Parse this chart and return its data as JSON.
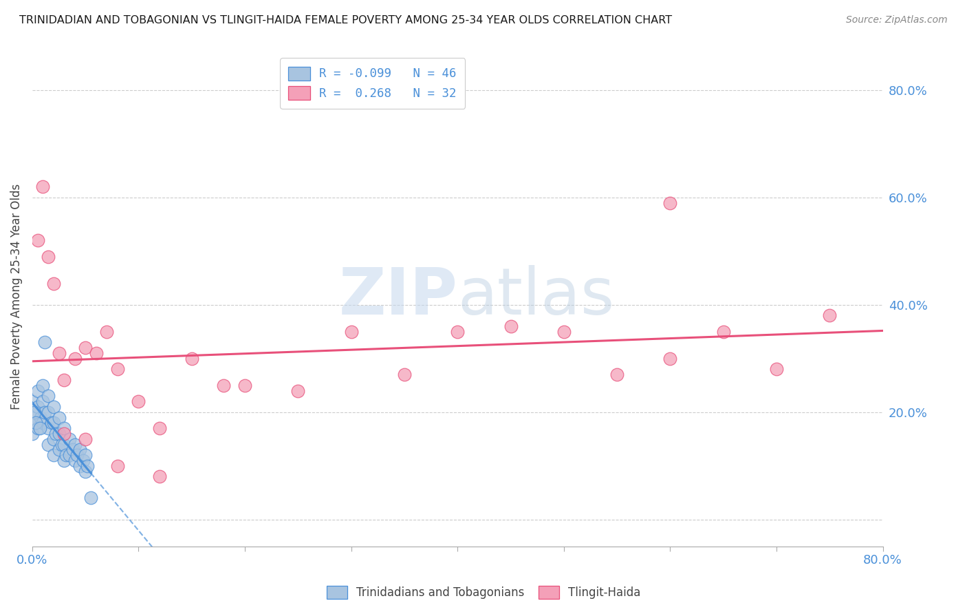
{
  "title": "TRINIDADIAN AND TOBAGONIAN VS TLINGIT-HAIDA FEMALE POVERTY AMONG 25-34 YEAR OLDS CORRELATION CHART",
  "source": "Source: ZipAtlas.com",
  "ylabel": "Female Poverty Among 25-34 Year Olds",
  "xlim": [
    0,
    0.8
  ],
  "ylim": [
    -0.05,
    0.88
  ],
  "yticks": [
    0.0,
    0.2,
    0.4,
    0.6,
    0.8
  ],
  "ytick_labels": [
    "",
    "20.0%",
    "40.0%",
    "60.0%",
    "80.0%"
  ],
  "xticks": [
    0.0,
    0.1,
    0.2,
    0.3,
    0.4,
    0.5,
    0.6,
    0.7,
    0.8
  ],
  "watermark_zip": "ZIP",
  "watermark_atlas": "atlas",
  "legend_label_blue": "R = -0.099   N = 46",
  "legend_label_pink": "R =  0.268   N = 32",
  "bottom_legend_blue": "Trinidadians and Tobagonians",
  "bottom_legend_pink": "Tlingit-Haida",
  "blue_scatter_x": [
    0.0,
    0.0,
    0.0,
    0.005,
    0.005,
    0.005,
    0.008,
    0.01,
    0.01,
    0.01,
    0.012,
    0.015,
    0.015,
    0.015,
    0.015,
    0.018,
    0.02,
    0.02,
    0.02,
    0.02,
    0.022,
    0.025,
    0.025,
    0.025,
    0.028,
    0.03,
    0.03,
    0.03,
    0.032,
    0.035,
    0.035,
    0.038,
    0.04,
    0.04,
    0.042,
    0.045,
    0.045,
    0.048,
    0.05,
    0.05,
    0.052,
    0.055,
    0.002,
    0.003,
    0.007,
    0.012
  ],
  "blue_scatter_y": [
    0.22,
    0.19,
    0.16,
    0.24,
    0.21,
    0.17,
    0.19,
    0.25,
    0.22,
    0.18,
    0.2,
    0.23,
    0.2,
    0.17,
    0.14,
    0.18,
    0.21,
    0.18,
    0.15,
    0.12,
    0.16,
    0.19,
    0.16,
    0.13,
    0.14,
    0.17,
    0.14,
    0.11,
    0.12,
    0.15,
    0.12,
    0.13,
    0.14,
    0.11,
    0.12,
    0.13,
    0.1,
    0.11,
    0.12,
    0.09,
    0.1,
    0.04,
    0.2,
    0.18,
    0.17,
    0.33
  ],
  "pink_scatter_x": [
    0.005,
    0.01,
    0.015,
    0.02,
    0.025,
    0.03,
    0.04,
    0.05,
    0.06,
    0.07,
    0.08,
    0.1,
    0.12,
    0.15,
    0.18,
    0.2,
    0.25,
    0.3,
    0.35,
    0.4,
    0.45,
    0.5,
    0.55,
    0.6,
    0.65,
    0.7,
    0.75,
    0.6,
    0.03,
    0.05,
    0.08,
    0.12
  ],
  "pink_scatter_y": [
    0.52,
    0.62,
    0.49,
    0.44,
    0.31,
    0.26,
    0.3,
    0.32,
    0.31,
    0.35,
    0.28,
    0.22,
    0.17,
    0.3,
    0.25,
    0.25,
    0.24,
    0.35,
    0.27,
    0.35,
    0.36,
    0.35,
    0.27,
    0.59,
    0.35,
    0.28,
    0.38,
    0.3,
    0.16,
    0.15,
    0.1,
    0.08
  ],
  "blue_line_color": "#4a90d9",
  "pink_line_color": "#e8507a",
  "blue_dot_color": "#a8c4e0",
  "pink_dot_color": "#f4a0b8",
  "background_color": "#ffffff",
  "grid_color": "#cccccc"
}
